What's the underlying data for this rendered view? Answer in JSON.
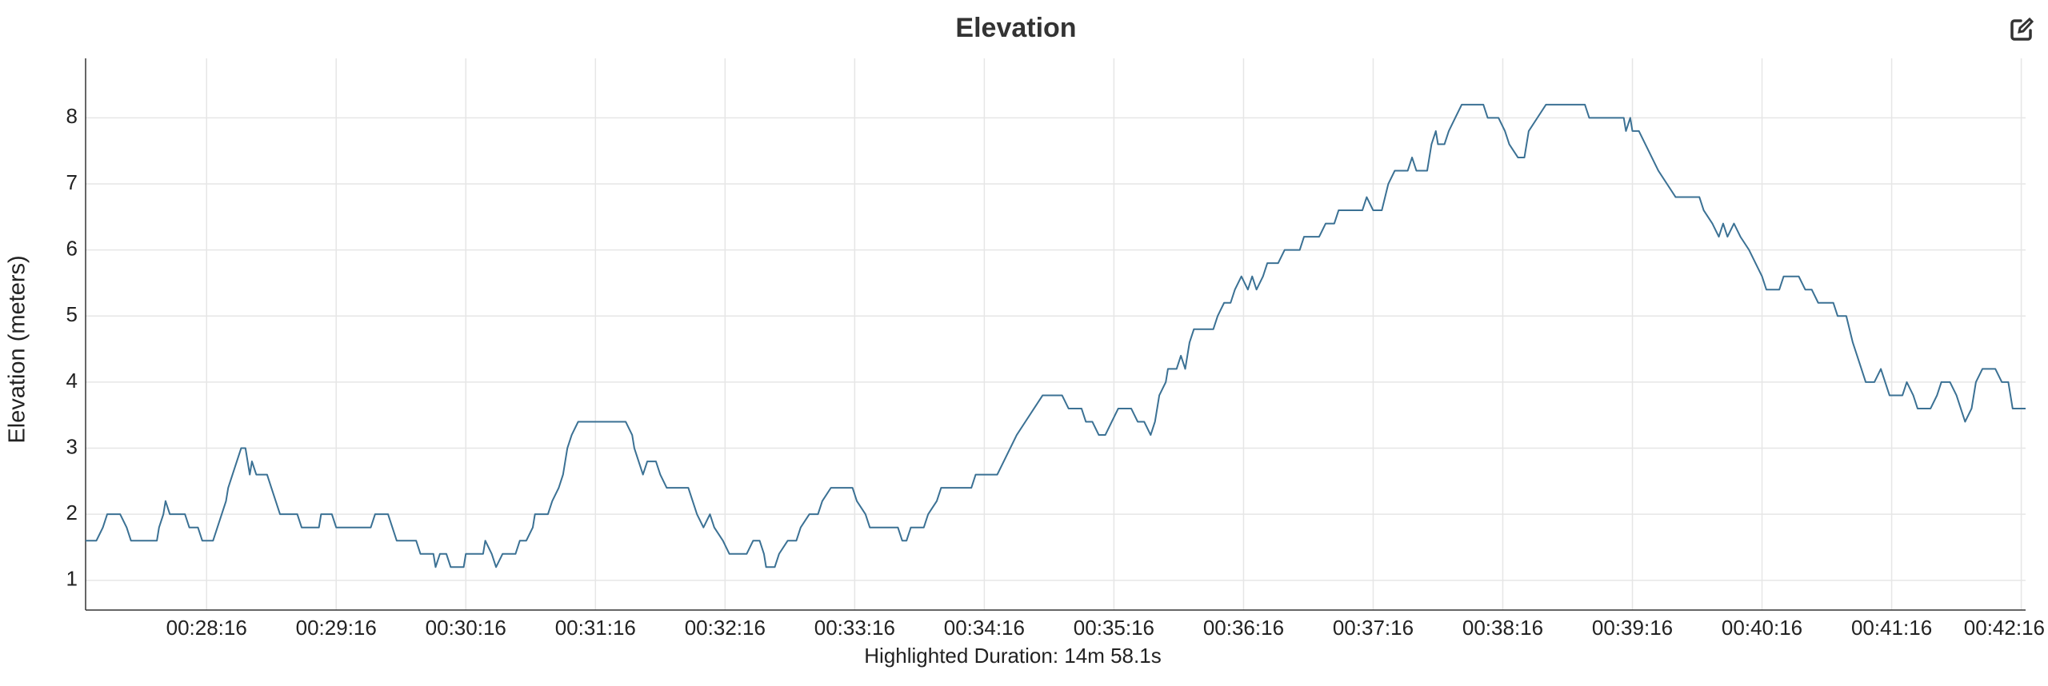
{
  "chart_data": {
    "type": "line",
    "title": "Elevation",
    "xlabel": "Highlighted Duration: 14m 58.1s",
    "ylabel": "Elevation (meters)",
    "color": "#3b7194",
    "grid": true,
    "xlim": [
      1640,
      2538
    ],
    "ylim": [
      0.55,
      8.9
    ],
    "yticks": [
      1,
      2,
      3,
      4,
      5,
      6,
      7,
      8
    ],
    "xticks": [
      {
        "value": 1696,
        "label": "00:28:16"
      },
      {
        "value": 1756,
        "label": "00:29:16"
      },
      {
        "value": 1816,
        "label": "00:30:16"
      },
      {
        "value": 1876,
        "label": "00:31:16"
      },
      {
        "value": 1936,
        "label": "00:32:16"
      },
      {
        "value": 1996,
        "label": "00:33:16"
      },
      {
        "value": 2056,
        "label": "00:34:16"
      },
      {
        "value": 2116,
        "label": "00:35:16"
      },
      {
        "value": 2176,
        "label": "00:36:16"
      },
      {
        "value": 2236,
        "label": "00:37:16"
      },
      {
        "value": 2296,
        "label": "00:38:16"
      },
      {
        "value": 2356,
        "label": "00:39:16"
      },
      {
        "value": 2416,
        "label": "00:40:16"
      },
      {
        "value": 2476,
        "label": "00:41:16"
      },
      {
        "value": 2536,
        "label": "00:42:16"
      }
    ],
    "x": [
      1640,
      1645,
      1648,
      1650,
      1656,
      1659,
      1661,
      1673,
      1674,
      1676,
      1677,
      1679,
      1686,
      1688,
      1692,
      1694,
      1699,
      1701,
      1703,
      1705,
      1706,
      1708,
      1710,
      1712,
      1714,
      1716,
      1717,
      1719,
      1724,
      1726,
      1728,
      1730,
      1738,
      1740,
      1748,
      1749,
      1754,
      1756,
      1772,
      1774,
      1780,
      1782,
      1784,
      1793,
      1795,
      1801,
      1802,
      1804,
      1807,
      1809,
      1815,
      1816,
      1824,
      1825,
      1828,
      1830,
      1833,
      1839,
      1841,
      1844,
      1847,
      1848,
      1854,
      1856,
      1859,
      1861,
      1863,
      1865,
      1868,
      1890,
      1893,
      1894,
      1896,
      1898,
      1900,
      1904,
      1906,
      1909,
      1919,
      1921,
      1923,
      1926,
      1929,
      1931,
      1935,
      1938,
      1946,
      1949,
      1952,
      1954,
      1955,
      1959,
      1961,
      1965,
      1969,
      1971,
      1975,
      1979,
      1981,
      1985,
      1995,
      1997,
      2001,
      2003,
      2016,
      2018,
      2020,
      2022,
      2028,
      2030,
      2034,
      2036,
      2050,
      2052,
      2062,
      2065,
      2068,
      2071,
      2075,
      2079,
      2083,
      2092,
      2095,
      2101,
      2103,
      2106,
      2109,
      2112,
      2115,
      2118,
      2124,
      2127,
      2130,
      2133,
      2135,
      2137,
      2140,
      2141,
      2145,
      2147,
      2149,
      2151,
      2153,
      2162,
      2164,
      2167,
      2170,
      2172,
      2175,
      2178,
      2180,
      2182,
      2185,
      2187,
      2192,
      2195,
      2202,
      2204,
      2211,
      2214,
      2218,
      2220,
      2231,
      2233,
      2236,
      2240,
      2243,
      2246,
      2252,
      2254,
      2256,
      2261,
      2263,
      2265,
      2266,
      2269,
      2271,
      2274,
      2277,
      2287,
      2289,
      2294,
      2297,
      2299,
      2303,
      2306,
      2308,
      2312,
      2316,
      2334,
      2336,
      2352,
      2353,
      2355,
      2356,
      2359,
      2362,
      2365,
      2368,
      2372,
      2376,
      2387,
      2389,
      2393,
      2396,
      2398,
      2400,
      2403,
      2406,
      2410,
      2413,
      2416,
      2418,
      2424,
      2426,
      2433,
      2436,
      2439,
      2442,
      2449,
      2451,
      2455,
      2458,
      2460,
      2464,
      2468,
      2471,
      2473,
      2475,
      2481,
      2483,
      2486,
      2488,
      2494,
      2497,
      2499,
      2503,
      2506,
      2508,
      2510,
      2513,
      2515,
      2518,
      2524,
      2527,
      2530,
      2532,
      2538
    ],
    "values": [
      1.6,
      1.6,
      1.8,
      2.0,
      2.0,
      1.8,
      1.6,
      1.6,
      1.8,
      2.0,
      2.2,
      2.0,
      2.0,
      1.8,
      1.8,
      1.6,
      1.6,
      1.8,
      2.0,
      2.2,
      2.4,
      2.6,
      2.8,
      3.0,
      3.0,
      2.6,
      2.8,
      2.6,
      2.6,
      2.4,
      2.2,
      2.0,
      2.0,
      1.8,
      1.8,
      2.0,
      2.0,
      1.8,
      1.8,
      2.0,
      2.0,
      1.8,
      1.6,
      1.6,
      1.4,
      1.4,
      1.2,
      1.4,
      1.4,
      1.2,
      1.2,
      1.4,
      1.4,
      1.6,
      1.4,
      1.2,
      1.4,
      1.4,
      1.6,
      1.6,
      1.8,
      2.0,
      2.0,
      2.2,
      2.4,
      2.6,
      3.0,
      3.2,
      3.4,
      3.4,
      3.2,
      3.0,
      2.8,
      2.6,
      2.8,
      2.8,
      2.6,
      2.4,
      2.4,
      2.2,
      2.0,
      1.8,
      2.0,
      1.8,
      1.6,
      1.4,
      1.4,
      1.6,
      1.6,
      1.4,
      1.2,
      1.2,
      1.4,
      1.6,
      1.6,
      1.8,
      2.0,
      2.0,
      2.2,
      2.4,
      2.4,
      2.2,
      2.0,
      1.8,
      1.8,
      1.6,
      1.6,
      1.8,
      1.8,
      2.0,
      2.2,
      2.4,
      2.4,
      2.6,
      2.6,
      2.8,
      3.0,
      3.2,
      3.4,
      3.6,
      3.8,
      3.8,
      3.6,
      3.6,
      3.4,
      3.4,
      3.2,
      3.2,
      3.4,
      3.6,
      3.6,
      3.4,
      3.4,
      3.2,
      3.4,
      3.8,
      4.0,
      4.2,
      4.2,
      4.4,
      4.2,
      4.6,
      4.8,
      4.8,
      5.0,
      5.2,
      5.2,
      5.4,
      5.6,
      5.4,
      5.6,
      5.4,
      5.6,
      5.8,
      5.8,
      6.0,
      6.0,
      6.2,
      6.2,
      6.4,
      6.4,
      6.6,
      6.6,
      6.8,
      6.6,
      6.6,
      7.0,
      7.2,
      7.2,
      7.4,
      7.2,
      7.2,
      7.6,
      7.8,
      7.6,
      7.6,
      7.8,
      8.0,
      8.2,
      8.2,
      8.0,
      8.0,
      7.8,
      7.6,
      7.4,
      7.4,
      7.8,
      8.0,
      8.2,
      8.2,
      8.0,
      8.0,
      7.8,
      8.0,
      7.8,
      7.8,
      7.6,
      7.4,
      7.2,
      7.0,
      6.8,
      6.8,
      6.6,
      6.4,
      6.2,
      6.4,
      6.2,
      6.4,
      6.2,
      6.0,
      5.8,
      5.6,
      5.4,
      5.4,
      5.6,
      5.6,
      5.4,
      5.4,
      5.2,
      5.2,
      5.0,
      5.0,
      4.6,
      4.4,
      4.0,
      4.0,
      4.2,
      4.0,
      3.8,
      3.8,
      4.0,
      3.8,
      3.6,
      3.6,
      3.8,
      4.0,
      4.0,
      3.8,
      3.6,
      3.4,
      3.6,
      4.0,
      4.2,
      4.2,
      4.0,
      4.0,
      3.6,
      3.6
    ]
  }
}
